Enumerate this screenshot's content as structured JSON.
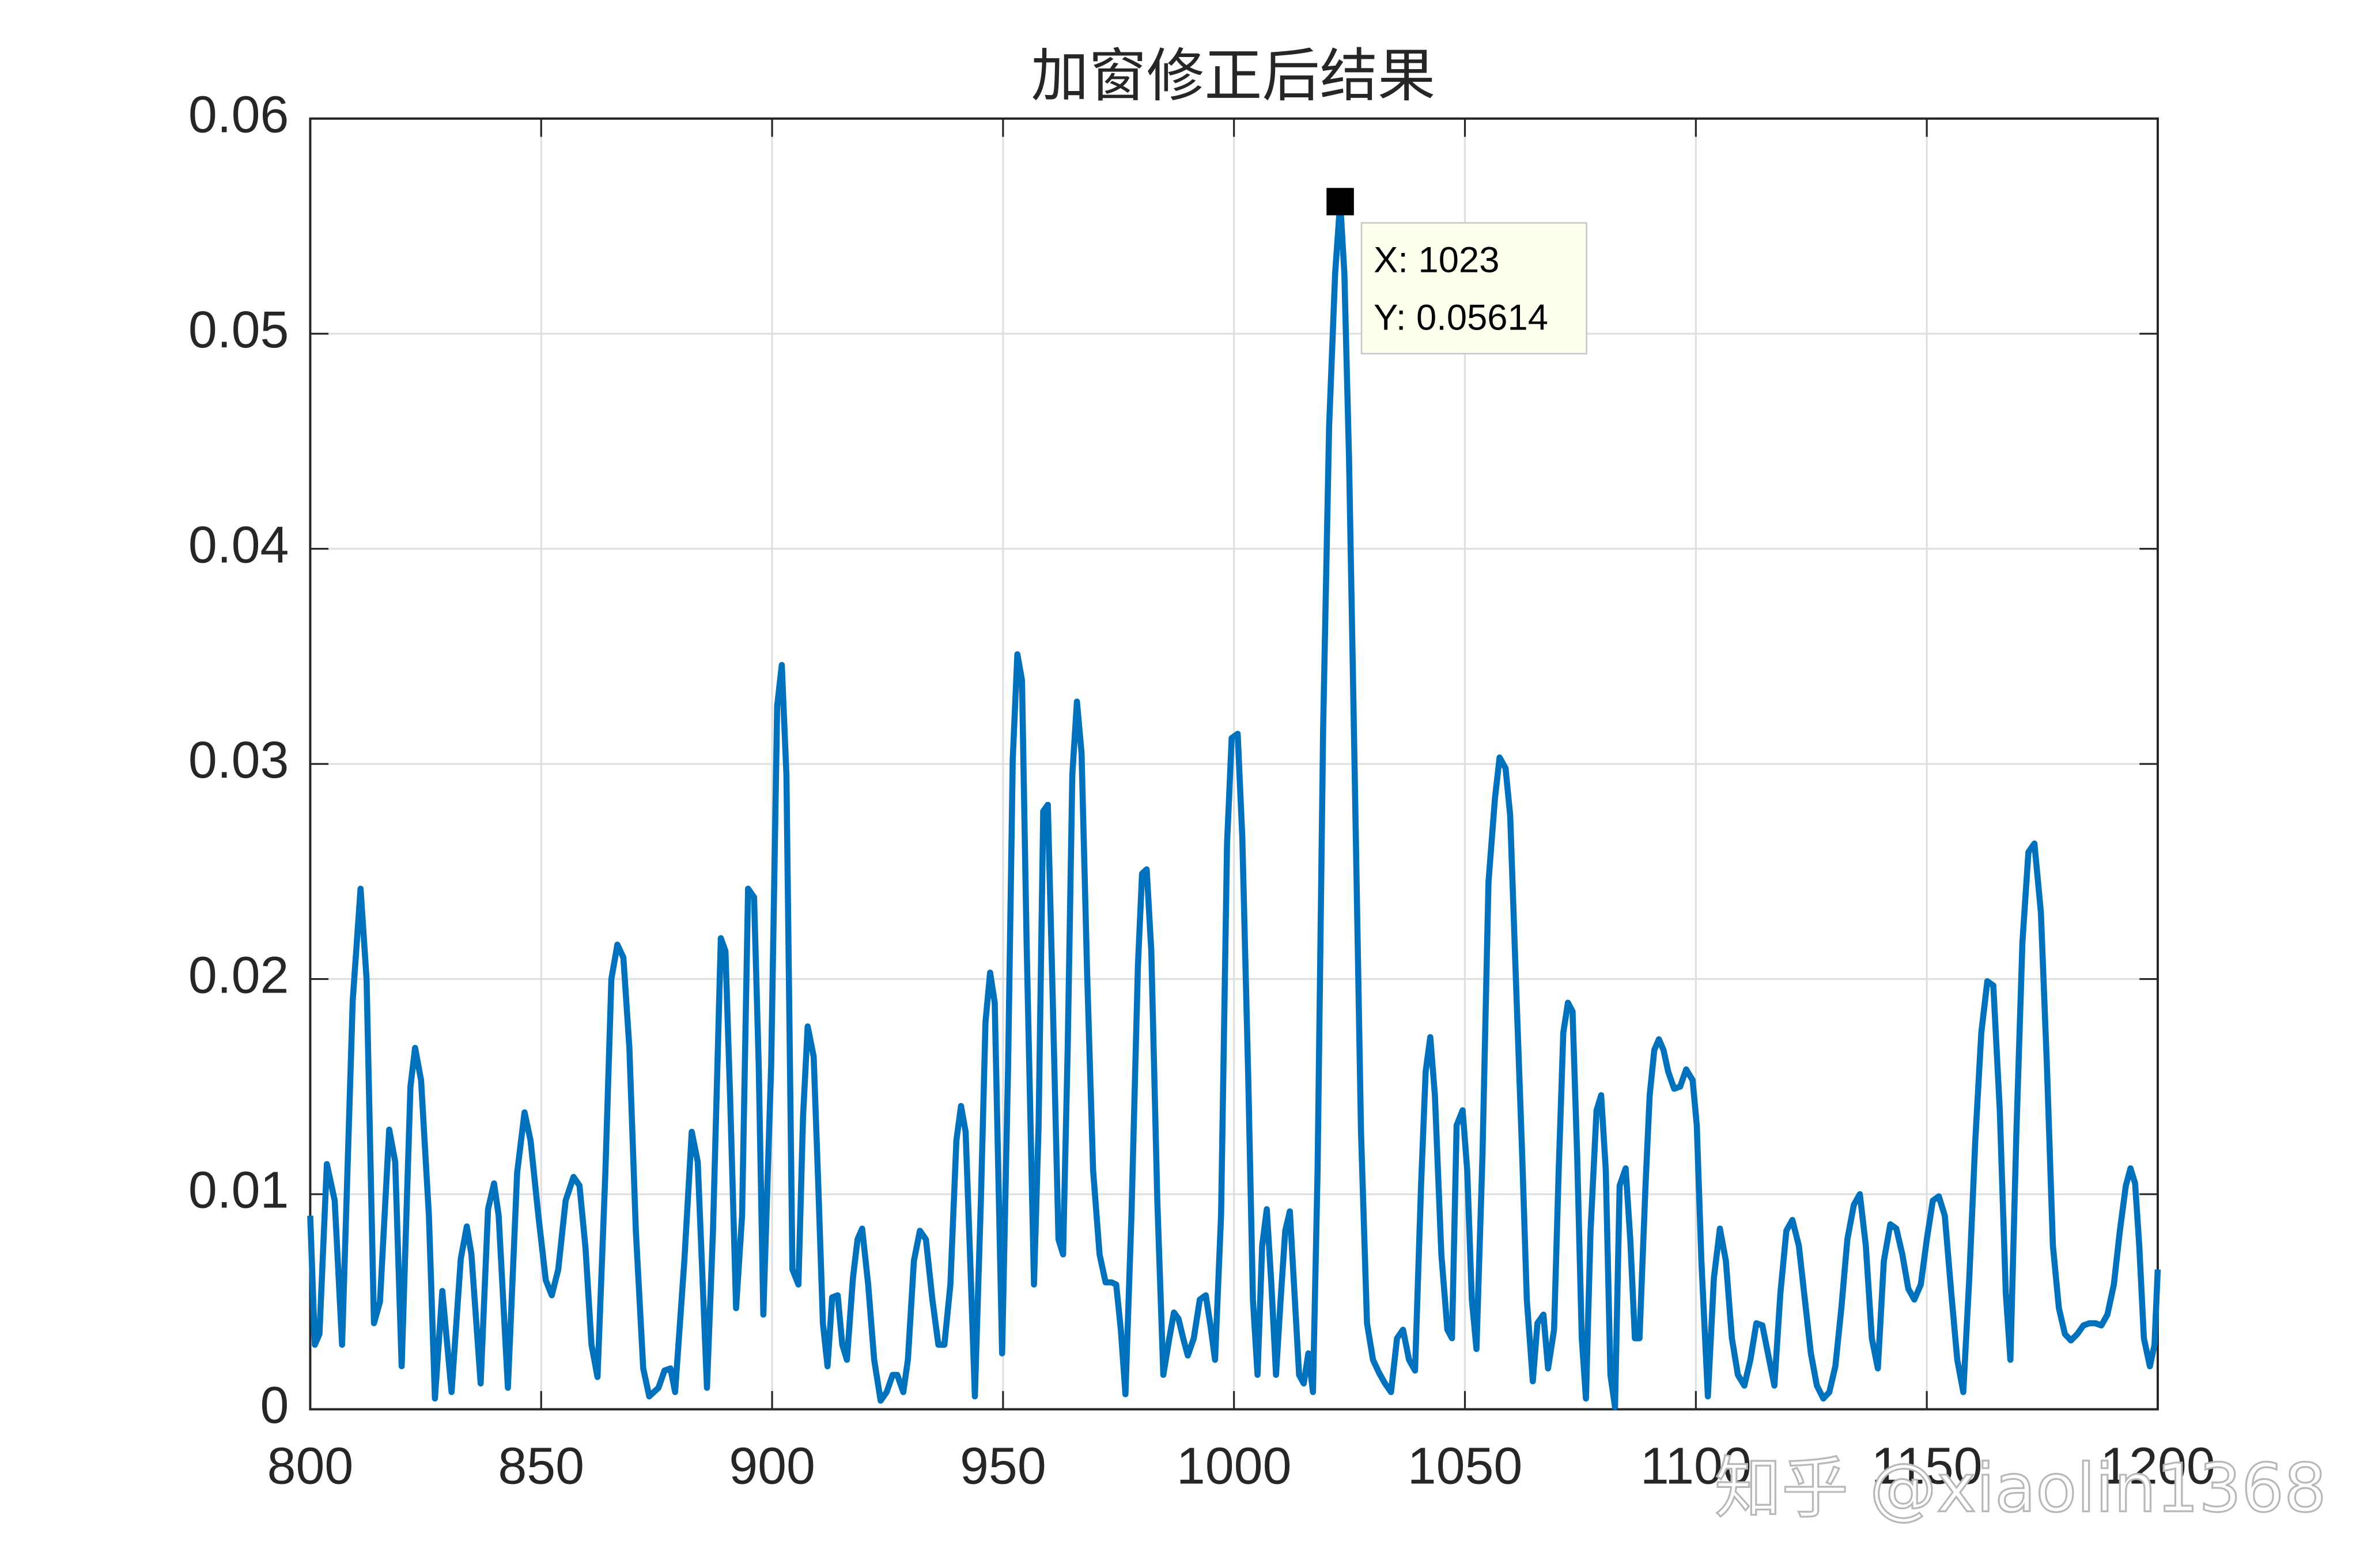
{
  "chart_data": {
    "type": "line",
    "title": "加窗修正后结果",
    "color": "#0072BD",
    "grid": true,
    "xlim": [
      800,
      1200
    ],
    "xticks": [
      800,
      850,
      900,
      950,
      1000,
      1050,
      1100,
      1150,
      1200
    ],
    "ylim": [
      0,
      0.06
    ],
    "yticks": [
      0,
      0.01,
      0.02,
      0.03,
      0.04,
      0.05,
      0.06
    ],
    "x": [
      800,
      801,
      802,
      803.6,
      805.3,
      806.9,
      809.2,
      810.9,
      812.2,
      813.8,
      815.1,
      817.1,
      818.4,
      819.8,
      821.7,
      822.7,
      824,
      825.7,
      827,
      828.6,
      830.6,
      832.6,
      833.9,
      834.9,
      836.9,
      838.5,
      839.8,
      840.8,
      842.8,
      844.8,
      846.4,
      847.7,
      849.4,
      851,
      852.3,
      853.7,
      855.3,
      857,
      858.3,
      859.6,
      860.9,
      862.2,
      863.9,
      865.2,
      866.5,
      867.8,
      869.1,
      870.5,
      872.1,
      873.4,
      875.4,
      876.7,
      878,
      879,
      881,
      882.6,
      883.9,
      885.9,
      887.2,
      888.9,
      889.9,
      890.9,
      892.2,
      893.5,
      894.8,
      896.1,
      897.1,
      898.1,
      899.8,
      901.1,
      902.1,
      903.1,
      904.4,
      905.7,
      906.7,
      907.7,
      909,
      910,
      911,
      912,
      913,
      914.2,
      915.2,
      916.2,
      917.5,
      918.5,
      919.5,
      920.8,
      922.1,
      923.5,
      924.8,
      926.1,
      927.1,
      928.4,
      929.4,
      930.7,
      932,
      933.3,
      934.7,
      936,
      937.3,
      938.6,
      939.9,
      940.9,
      941.9,
      942.9,
      943.9,
      945.2,
      946.2,
      947.2,
      948.2,
      949.8,
      951.1,
      952.1,
      953.1,
      954.1,
      955.1,
      956.7,
      957.7,
      958.7,
      959.7,
      960.7,
      962,
      963,
      964,
      965,
      966,
      967,
      968.2,
      969.5,
      970.9,
      972.2,
      973.5,
      974.5,
      975.5,
      976.5,
      977.8,
      979.2,
      980.1,
      981.1,
      982.1,
      983.4,
      984.7,
      986,
      987,
      988,
      989,
      990,
      991.3,
      992.6,
      993.9,
      994.9,
      995.9,
      997.2,
      998.5,
      999.5,
      1000.8,
      1001.8,
      1003.1,
      1004.1,
      1005.1,
      1006.1,
      1007.1,
      1008.1,
      1009.1,
      1010.1,
      1011.1,
      1012.1,
      1013.1,
      1014.1,
      1015.1,
      1016.1,
      1017.1,
      1018.1,
      1019.3,
      1020.6,
      1021.9,
      1023,
      1023.9,
      1024.9,
      1026.2,
      1027.5,
      1028.8,
      1030.1,
      1031.4,
      1032.7,
      1034,
      1035.3,
      1036.6,
      1037.9,
      1039.2,
      1040.5,
      1041.5,
      1042.5,
      1043.5,
      1044.9,
      1046.2,
      1047.2,
      1048.2,
      1049.5,
      1050.5,
      1051.5,
      1052.5,
      1053.8,
      1055.1,
      1056.5,
      1057.5,
      1058.8,
      1059.8,
      1061.1,
      1062.4,
      1063.4,
      1064.7,
      1065.7,
      1067,
      1068,
      1069.3,
      1070.3,
      1071.3,
      1072.3,
      1073.3,
      1074.3,
      1075.3,
      1076.2,
      1077.2,
      1078.5,
      1079.5,
      1080.5,
      1081.5,
      1082.5,
      1083.5,
      1084.8,
      1085.8,
      1086.8,
      1087.8,
      1089.1,
      1090,
      1091,
      1092,
      1093,
      1094,
      1095.3,
      1096.6,
      1097.9,
      1099.3,
      1100.2,
      1101.2,
      1102.6,
      1103.9,
      1105.2,
      1106.5,
      1107.8,
      1109.1,
      1110.5,
      1111.8,
      1113.1,
      1114.4,
      1115.7,
      1117,
      1118.3,
      1119.6,
      1120.9,
      1122.3,
      1123.6,
      1124.9,
      1126.2,
      1127.6,
      1128.9,
      1130.2,
      1131.5,
      1132.8,
      1134.2,
      1135.5,
      1136.8,
      1138.1,
      1139.4,
      1140.7,
      1142.1,
      1143.4,
      1144.7,
      1146,
      1147.3,
      1148.7,
      1150,
      1151.3,
      1152.6,
      1153.9,
      1155.3,
      1156.6,
      1157.9,
      1159.2,
      1160.5,
      1161.8,
      1163.1,
      1164.4,
      1165.8,
      1167.1,
      1168.1,
      1169.4,
      1170.7,
      1172,
      1173.3,
      1174.7,
      1176,
      1177.3,
      1178.6,
      1179.9,
      1181.2,
      1182.6,
      1183.9,
      1185.2,
      1186.5,
      1187.8,
      1189.1,
      1190.5,
      1191.8,
      1193.1,
      1194.1,
      1195.1,
      1196,
      1197,
      1198.3,
      1199.3,
      1200
    ],
    "values": [
      0.009,
      0.003,
      0.0035,
      0.0114,
      0.0097,
      0.003,
      0.019,
      0.0242,
      0.02,
      0.004,
      0.005,
      0.013,
      0.0115,
      0.002,
      0.015,
      0.0168,
      0.0153,
      0.009,
      0.0005,
      0.0055,
      0.0008,
      0.007,
      0.0085,
      0.0072,
      0.0012,
      0.0093,
      0.0105,
      0.009,
      0.001,
      0.011,
      0.0138,
      0.0125,
      0.009,
      0.006,
      0.0053,
      0.0065,
      0.0097,
      0.0108,
      0.0104,
      0.0075,
      0.003,
      0.0015,
      0.011,
      0.02,
      0.0216,
      0.021,
      0.0168,
      0.0083,
      0.0019,
      0.0006,
      0.001,
      0.0018,
      0.0019,
      0.0008,
      0.0069,
      0.0129,
      0.0115,
      0.001,
      0.0083,
      0.0219,
      0.0213,
      0.0146,
      0.0047,
      0.009,
      0.0242,
      0.0238,
      0.016,
      0.0044,
      0.016,
      0.0327,
      0.0346,
      0.0295,
      0.0065,
      0.0058,
      0.0136,
      0.0178,
      0.0164,
      0.0104,
      0.004,
      0.002,
      0.0052,
      0.0053,
      0.003,
      0.0023,
      0.0061,
      0.0079,
      0.0084,
      0.0058,
      0.0023,
      0.0004,
      0.0008,
      0.0016,
      0.0016,
      0.0008,
      0.0023,
      0.0069,
      0.0083,
      0.0079,
      0.0051,
      0.003,
      0.003,
      0.0058,
      0.0125,
      0.0141,
      0.0129,
      0.0069,
      0.0006,
      0.0097,
      0.018,
      0.0203,
      0.0189,
      0.0026,
      0.016,
      0.0302,
      0.0351,
      0.0339,
      0.0217,
      0.0058,
      0.0132,
      0.0278,
      0.0281,
      0.0196,
      0.0079,
      0.0072,
      0.0168,
      0.0295,
      0.0329,
      0.0305,
      0.0203,
      0.0111,
      0.0072,
      0.0059,
      0.0059,
      0.0058,
      0.0037,
      0.0007,
      0.009,
      0.0206,
      0.0249,
      0.0251,
      0.0213,
      0.0097,
      0.0016,
      0.0033,
      0.0045,
      0.0042,
      0.0033,
      0.0025,
      0.0033,
      0.0051,
      0.0053,
      0.0039,
      0.0023,
      0.009,
      0.0263,
      0.0312,
      0.0314,
      0.0266,
      0.0153,
      0.0051,
      0.0016,
      0.0076,
      0.0093,
      0.0058,
      0.0016,
      0.0051,
      0.0083,
      0.0092,
      0.0054,
      0.0016,
      0.0012,
      0.0026,
      0.0008,
      0.0111,
      0.0316,
      0.0457,
      0.0528,
      0.05614,
      0.0528,
      0.0443,
      0.0288,
      0.0129,
      0.004,
      0.0023,
      0.0017,
      0.0012,
      0.0008,
      0.0033,
      0.0037,
      0.0023,
      0.0018,
      0.0104,
      0.0157,
      0.0173,
      0.0146,
      0.0072,
      0.0037,
      0.0033,
      0.0132,
      0.0139,
      0.0111,
      0.0051,
      0.0028,
      0.0118,
      0.0245,
      0.0284,
      0.0303,
      0.0298,
      0.0276,
      0.0196,
      0.0118,
      0.0051,
      0.0013,
      0.004,
      0.0044,
      0.0019,
      0.0037,
      0.0111,
      0.0175,
      0.0189,
      0.0185,
      0.0118,
      0.0033,
      0.0005,
      0.0083,
      0.0139,
      0.0146,
      0.0111,
      0.0016,
      0.0001,
      0.0104,
      0.0112,
      0.0079,
      0.0033,
      0.0033,
      0.0104,
      0.0146,
      0.0167,
      0.0172,
      0.0167,
      0.0157,
      0.0149,
      0.015,
      0.0158,
      0.0153,
      0.0132,
      0.0069,
      0.0006,
      0.0061,
      0.0084,
      0.0069,
      0.0033,
      0.0016,
      0.0011,
      0.0023,
      0.004,
      0.0039,
      0.0025,
      0.0011,
      0.0054,
      0.0083,
      0.0088,
      0.0076,
      0.0051,
      0.0026,
      0.0011,
      0.0005,
      0.0008,
      0.002,
      0.0047,
      0.0079,
      0.0095,
      0.01,
      0.0076,
      0.0033,
      0.0019,
      0.0069,
      0.0086,
      0.0084,
      0.0072,
      0.0056,
      0.0051,
      0.0058,
      0.0079,
      0.0097,
      0.0099,
      0.009,
      0.0054,
      0.0023,
      0.0008,
      0.0061,
      0.0125,
      0.0175,
      0.0199,
      0.0197,
      0.0139,
      0.0054,
      0.0023,
      0.0129,
      0.0217,
      0.0259,
      0.0263,
      0.0231,
      0.016,
      0.0076,
      0.0047,
      0.0035,
      0.0032,
      0.0035,
      0.0039,
      0.004,
      0.004,
      0.0039,
      0.0044,
      0.0058,
      0.0083,
      0.0104,
      0.0112,
      0.0105,
      0.0076,
      0.0033,
      0.002,
      0.003,
      0.0065
    ],
    "datatip": {
      "x": 1023,
      "y": 0.05614,
      "text": [
        "X: 1023",
        "Y: 0.05614"
      ]
    },
    "watermark": "知乎 @xiaolin1368"
  }
}
